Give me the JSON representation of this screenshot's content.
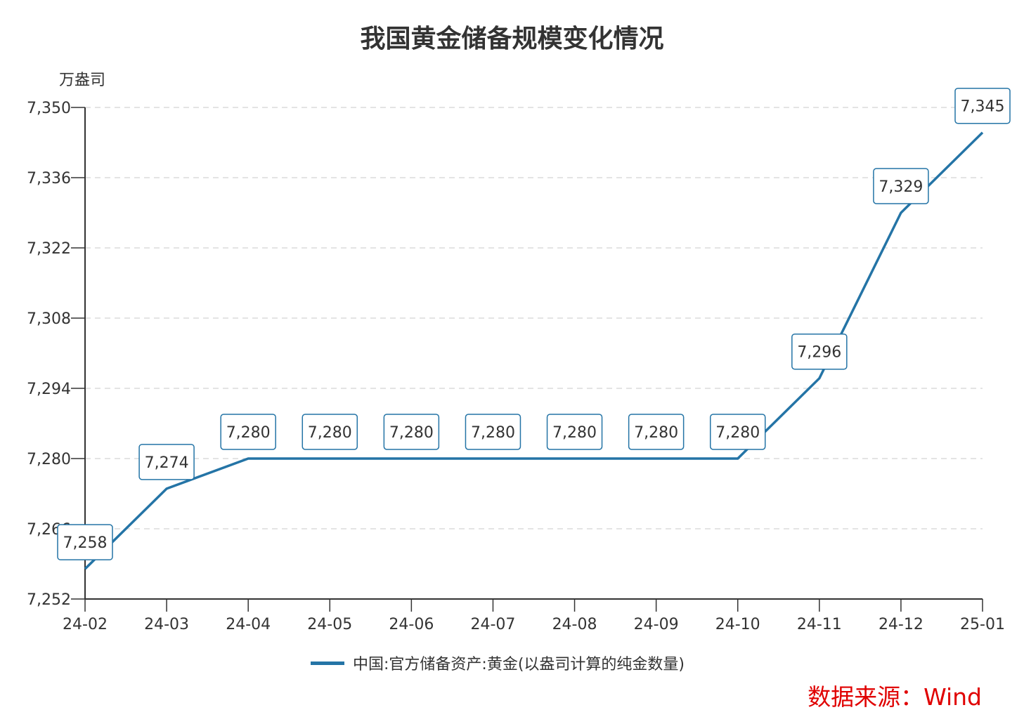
{
  "chart_data": {
    "type": "line",
    "title": "我国黄金储备规模变化情况",
    "ylabel": "万盎司",
    "xlabel": "",
    "categories": [
      "24-02",
      "24-03",
      "24-04",
      "24-05",
      "24-06",
      "24-07",
      "24-08",
      "24-09",
      "24-10",
      "24-11",
      "24-12",
      "25-01"
    ],
    "series": [
      {
        "name": "中国:官方储备资产:黄金(以盎司计算的纯金数量)",
        "values": [
          7258,
          7274,
          7280,
          7280,
          7280,
          7280,
          7280,
          7280,
          7280,
          7296,
          7329,
          7345
        ]
      }
    ],
    "data_labels": [
      "7,258",
      "7,274",
      "7,280",
      "7,280",
      "7,280",
      "7,280",
      "7,280",
      "7,280",
      "7,280",
      "7,296",
      "7,329",
      "7,345"
    ],
    "ylim": [
      7252,
      7350
    ],
    "yticks": [
      7252,
      7266,
      7280,
      7294,
      7308,
      7322,
      7336,
      7350
    ],
    "ytick_labels": [
      "7,252",
      "7,266",
      "7,280",
      "7,294",
      "7,308",
      "7,322",
      "7,336",
      "7,350"
    ],
    "grid": "horizontal dashed",
    "legend_position": "bottom",
    "line_color": "#2474a6",
    "source": "数据来源：Wind",
    "source_color": "#e00000"
  }
}
